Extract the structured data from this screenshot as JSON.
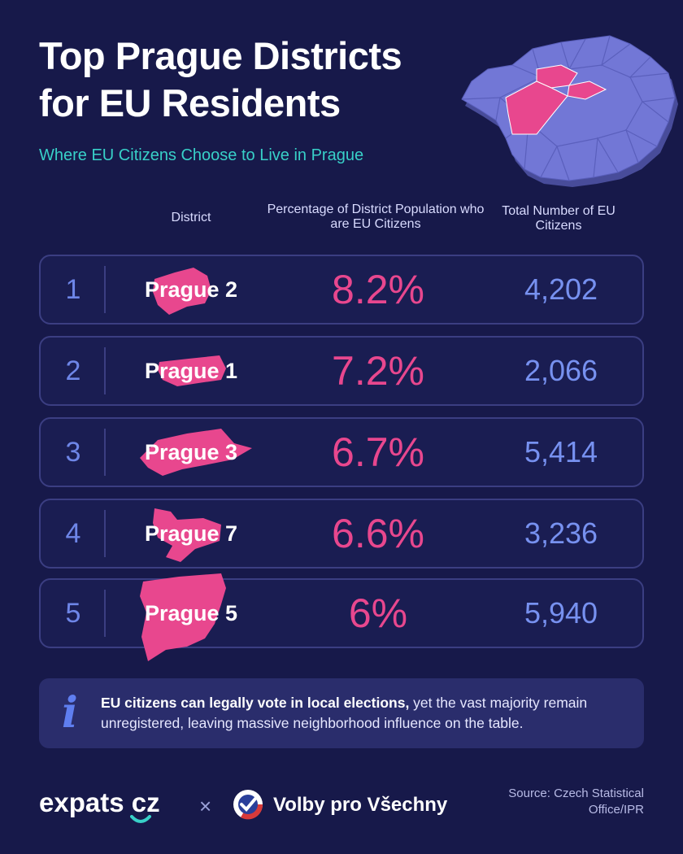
{
  "header": {
    "title_line1": "Top Prague Districts",
    "title_line2": "for EU Residents",
    "subtitle": "Where EU Citizens Choose to Live in Prague"
  },
  "columns": {
    "district": "District",
    "percentage": "Percentage of District Population who are EU Citizens",
    "total": "Total Number of EU Citizens"
  },
  "rows": [
    {
      "rank": "1",
      "district": "Prague 2",
      "percentage": "8.2%",
      "total": "4,202"
    },
    {
      "rank": "2",
      "district": "Prague 1",
      "percentage": "7.2%",
      "total": "2,066"
    },
    {
      "rank": "3",
      "district": "Prague 3",
      "percentage": "6.7%",
      "total": "5,414"
    },
    {
      "rank": "4",
      "district": "Prague 7",
      "percentage": "6.6%",
      "total": "3,236"
    },
    {
      "rank": "5",
      "district": "Prague 5",
      "percentage": "6%",
      "total": "5,940"
    }
  ],
  "info": {
    "icon": "info-icon",
    "bold": "EU citizens can legally vote in local elections,",
    "text": " yet the vast majority remain unregistered, leaving massive neighborhood influence on the table."
  },
  "footer": {
    "logo_expats": "expats cz",
    "separator": "×",
    "logo_volby": "Volby pro Všechny",
    "source": "Source: Czech Statistical Office/IPR"
  },
  "colors": {
    "background": "#17194a",
    "accent_pink": "#e8478e",
    "accent_blue": "#7791f0",
    "accent_teal": "#38d0c8",
    "map_fill": "#7277d6"
  }
}
